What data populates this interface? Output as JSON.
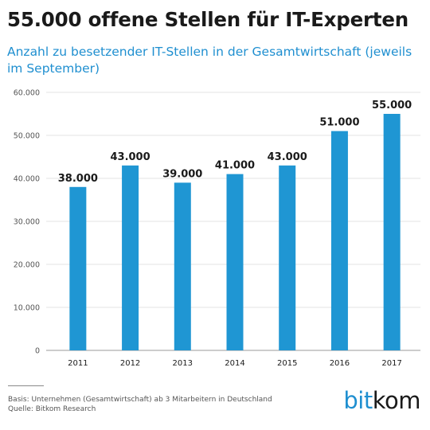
{
  "header": {
    "title": "55.000 offene Stellen für IT-Experten",
    "subtitle": "Anzahl zu besetzender IT-Stellen in der Gesamtwirtschaft (jeweils im September)"
  },
  "colors": {
    "bar": "#1f96d3",
    "subtitle": "#1f8fd0",
    "text": "#1a1a1a",
    "grid": "#e3e3e3"
  },
  "chart_data": {
    "type": "bar",
    "title": "55.000 offene Stellen für IT-Experten",
    "subtitle": "Anzahl zu besetzender IT-Stellen in der Gesamtwirtschaft (jeweils im September)",
    "categories": [
      "2011",
      "2012",
      "2013",
      "2014",
      "2015",
      "2016",
      "2017"
    ],
    "values": [
      38000,
      43000,
      39000,
      41000,
      43000,
      51000,
      55000
    ],
    "value_labels": [
      "38.000",
      "43.000",
      "39.000",
      "41.000",
      "43.000",
      "51.000",
      "55.000"
    ],
    "xlabel": "",
    "ylabel": "",
    "ylim": [
      0,
      60000
    ],
    "yticks": [
      0,
      10000,
      20000,
      30000,
      40000,
      50000,
      60000
    ],
    "ytick_labels": [
      "0",
      "10.000",
      "20.000",
      "30.000",
      "40.000",
      "50.000",
      "60.000"
    ],
    "grid": true,
    "legend": "none"
  },
  "footer": {
    "basis": "Basis: Unternehmen (Gesamtwirtschaft) ab 3 Mitarbeitern in Deutschland",
    "source": "Quelle: Bitkom Research",
    "logo_part1": "bit",
    "logo_part2": "kom"
  }
}
